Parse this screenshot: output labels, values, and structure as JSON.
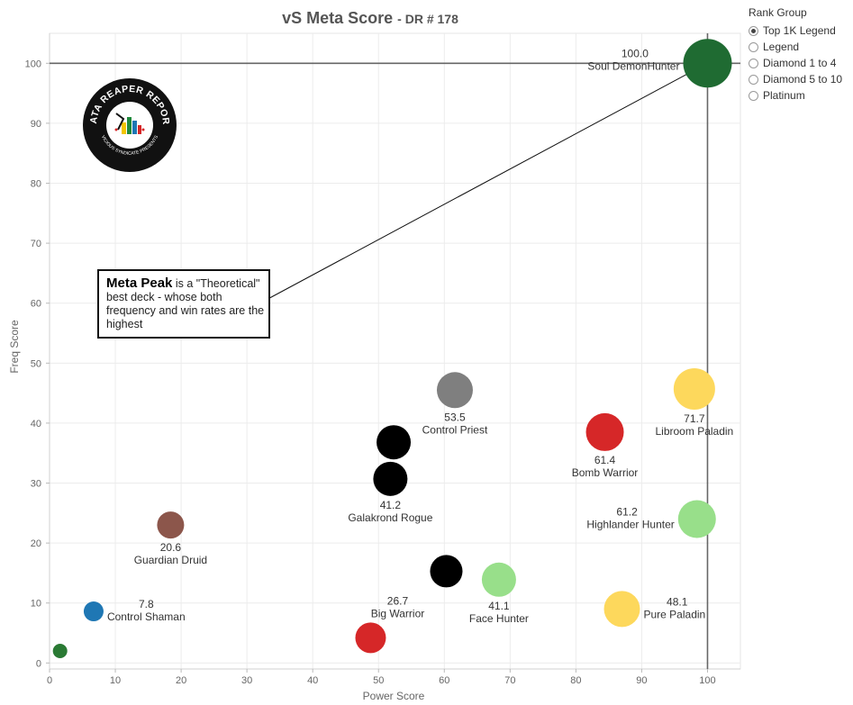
{
  "title": "vS Meta Score",
  "subtitle": "DR # 178",
  "legend": {
    "title": "Rank Group",
    "items": [
      {
        "label": "Top 1K Legend",
        "selected": true
      },
      {
        "label": "Legend",
        "selected": false
      },
      {
        "label": "Diamond 1 to 4",
        "selected": false
      },
      {
        "label": "Diamond 5 to 10",
        "selected": false
      },
      {
        "label": "Platinum",
        "selected": false
      }
    ]
  },
  "callout": {
    "bold": "Meta Peak",
    "text": " is a \"Theoretical\" best deck - whose both frequency and win rates are the highest"
  },
  "logo": {
    "text_top": "DATA REAPER REPORT",
    "text_bottom": "VICIOUS SYNDICATE PRESENTS"
  },
  "chart_data": {
    "type": "scatter",
    "xlabel": "Power Score",
    "ylabel": "Freq Score",
    "xlim": [
      0,
      105
    ],
    "ylim": [
      -1,
      105
    ],
    "xticks": [
      0,
      10,
      20,
      30,
      40,
      50,
      60,
      70,
      80,
      90,
      100
    ],
    "yticks": [
      0,
      10,
      20,
      30,
      40,
      50,
      60,
      70,
      80,
      90,
      100
    ],
    "grid": true,
    "reference_lines": {
      "x": 100,
      "y": 100
    },
    "points": [
      {
        "x": 100,
        "y": 100,
        "color": "#1f6b32",
        "size": 27,
        "value": "100.0",
        "label": "Soul DemonHunter",
        "label_pos": "left-top"
      },
      {
        "x": 98.0,
        "y": 45.7,
        "color": "#fdd85c",
        "size": 23,
        "value": "71.7",
        "label": "Libroom Paladin",
        "label_pos": "below"
      },
      {
        "x": 84.4,
        "y": 38.5,
        "color": "#d62728",
        "size": 21,
        "value": "61.4",
        "label": "Bomb Warrior",
        "label_pos": "below"
      },
      {
        "x": 98.4,
        "y": 24.0,
        "color": "#98df8a",
        "size": 21,
        "value": "61.2",
        "label": "Highlander Hunter",
        "label_pos": "left"
      },
      {
        "x": 61.6,
        "y": 45.5,
        "color": "#7f7f7f",
        "size": 20,
        "value": "53.5",
        "label": "Control Priest",
        "label_pos": "below"
      },
      {
        "x": 87.0,
        "y": 9.0,
        "color": "#fdd85c",
        "size": 20,
        "value": "48.1",
        "label": "Pure Paladin",
        "label_pos": "right"
      },
      {
        "x": 52.3,
        "y": 36.8,
        "color": "#000000",
        "size": 19,
        "value": "",
        "label": "",
        "label_pos": "none"
      },
      {
        "x": 51.8,
        "y": 30.7,
        "color": "#000000",
        "size": 19,
        "value": "41.2",
        "label": "Galakrond Rogue",
        "label_pos": "below"
      },
      {
        "x": 68.3,
        "y": 13.9,
        "color": "#98df8a",
        "size": 19,
        "value": "41.1",
        "label": "Face Hunter",
        "label_pos": "below"
      },
      {
        "x": 60.3,
        "y": 15.3,
        "color": "#000000",
        "size": 18,
        "value": "",
        "label": "",
        "label_pos": "none"
      },
      {
        "x": 48.8,
        "y": 4.2,
        "color": "#d62728",
        "size": 17,
        "value": "26.7",
        "label": "Big Warrior",
        "label_pos": "above-right"
      },
      {
        "x": 18.4,
        "y": 23.0,
        "color": "#8c564b",
        "size": 15,
        "value": "20.6",
        "label": "Guardian Druid",
        "label_pos": "below"
      },
      {
        "x": 6.7,
        "y": 8.6,
        "color": "#1f77b4",
        "size": 11,
        "value": "7.8",
        "label": "Control Shaman",
        "label_pos": "right"
      },
      {
        "x": 1.6,
        "y": 2.0,
        "color": "#2a7a34",
        "size": 8,
        "value": "",
        "label": "",
        "label_pos": "none"
      }
    ]
  }
}
